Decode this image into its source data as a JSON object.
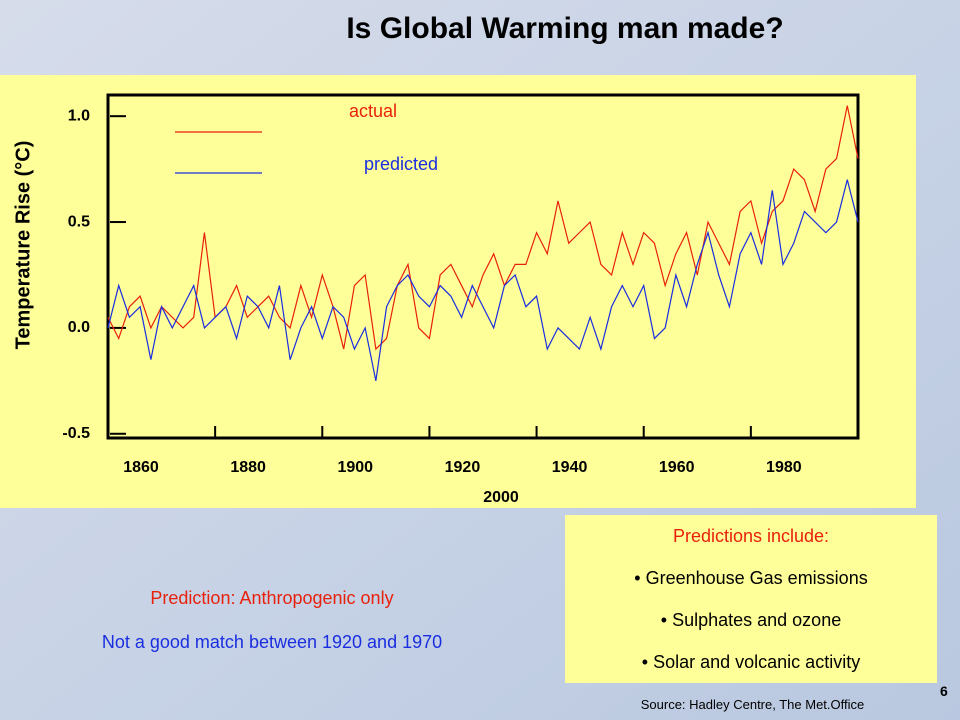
{
  "chart_data": {
    "type": "line",
    "title": "Is Global Warming man made?",
    "ylabel": "Temperature Rise (°C)",
    "x": [
      1860,
      1862,
      1864,
      1866,
      1868,
      1870,
      1872,
      1874,
      1876,
      1878,
      1880,
      1882,
      1884,
      1886,
      1888,
      1890,
      1892,
      1894,
      1896,
      1898,
      1900,
      1902,
      1904,
      1906,
      1908,
      1910,
      1912,
      1914,
      1916,
      1918,
      1920,
      1922,
      1924,
      1926,
      1928,
      1930,
      1932,
      1934,
      1936,
      1938,
      1940,
      1942,
      1944,
      1946,
      1948,
      1950,
      1952,
      1954,
      1956,
      1958,
      1960,
      1962,
      1964,
      1966,
      1968,
      1970,
      1972,
      1974,
      1976,
      1978,
      1980,
      1982,
      1984,
      1986,
      1988,
      1990,
      1992,
      1994,
      1996,
      1998,
      2000
    ],
    "series": [
      {
        "name": "actual",
        "color": "#e8210c",
        "values": [
          0.05,
          -0.05,
          0.1,
          0.15,
          0.0,
          0.1,
          0.05,
          0.0,
          0.05,
          0.45,
          0.05,
          0.1,
          0.2,
          0.05,
          0.1,
          0.15,
          0.05,
          0.0,
          0.2,
          0.05,
          0.25,
          0.1,
          -0.1,
          0.2,
          0.25,
          -0.1,
          -0.05,
          0.2,
          0.3,
          0.0,
          -0.05,
          0.25,
          0.3,
          0.2,
          0.1,
          0.25,
          0.35,
          0.2,
          0.3,
          0.3,
          0.45,
          0.35,
          0.6,
          0.4,
          0.45,
          0.5,
          0.3,
          0.25,
          0.45,
          0.3,
          0.45,
          0.4,
          0.2,
          0.35,
          0.45,
          0.25,
          0.5,
          0.4,
          0.3,
          0.55,
          0.6,
          0.4,
          0.55,
          0.6,
          0.75,
          0.7,
          0.55,
          0.75,
          0.8,
          1.05,
          0.8
        ]
      },
      {
        "name": "predicted",
        "color": "#1a2ee0",
        "values": [
          0.0,
          0.2,
          0.05,
          0.1,
          -0.15,
          0.1,
          0.0,
          0.1,
          0.2,
          0.0,
          0.05,
          0.1,
          -0.05,
          0.15,
          0.1,
          0.0,
          0.2,
          -0.15,
          0.0,
          0.1,
          -0.05,
          0.1,
          0.05,
          -0.1,
          0.0,
          -0.25,
          0.1,
          0.2,
          0.25,
          0.15,
          0.1,
          0.2,
          0.15,
          0.05,
          0.2,
          0.1,
          0.0,
          0.2,
          0.25,
          0.1,
          0.15,
          -0.1,
          0.0,
          -0.05,
          -0.1,
          0.05,
          -0.1,
          0.1,
          0.2,
          0.1,
          0.2,
          -0.05,
          0.0,
          0.25,
          0.1,
          0.3,
          0.45,
          0.25,
          0.1,
          0.35,
          0.45,
          0.3,
          0.65,
          0.3,
          0.4,
          0.55,
          0.5,
          0.45,
          0.5,
          0.7,
          0.5
        ]
      }
    ],
    "xlim": [
      1860,
      2000
    ],
    "xticks": [
      1860,
      1880,
      1900,
      1920,
      1940,
      1960,
      1980,
      2000
    ],
    "ylim": [
      -0.52,
      1.1
    ],
    "yticks": [
      {
        "value": -0.5,
        "label": "-0.5"
      },
      {
        "value": 0,
        "label": "0.0"
      },
      0.5,
      {
        "value": 1,
        "label": "1.0"
      }
    ]
  },
  "notes": {
    "prediction": "Prediction: Anthropogenic only",
    "match": "Not a good match between 1920 and 1970"
  },
  "box": {
    "heading": "Predictions include:",
    "items": [
      "Greenhouse Gas emissions",
      "Sulphates and ozone",
      "Solar and volcanic activity"
    ]
  },
  "source": "Source: Hadley Centre, The Met.Office",
  "page": "6"
}
